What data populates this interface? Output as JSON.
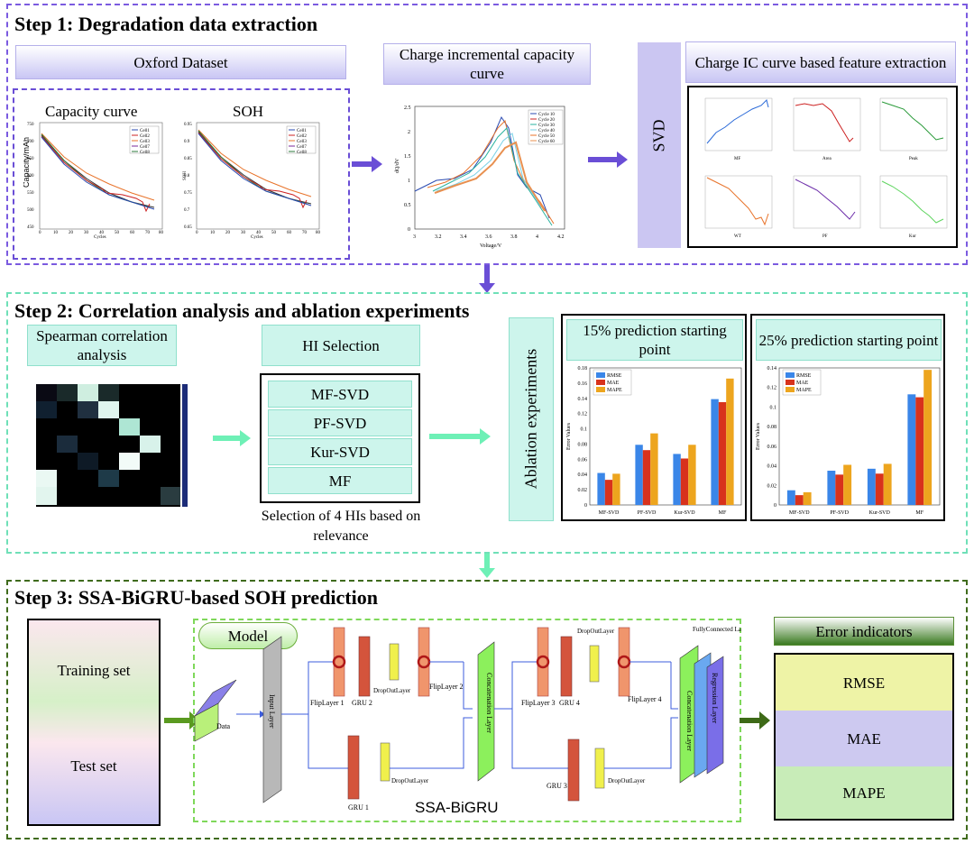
{
  "step1": {
    "title": "Step 1: Degradation data extraction",
    "oxford_dataset": "Oxford Dataset",
    "capacity_curve": "Capacity curve",
    "soh": "SOH",
    "charge_ic_curve": "Charge incremental capacity curve",
    "svd": "SVD",
    "feature_extraction": "Charge IC curve based feature extraction",
    "capacity_plot": {
      "xlabel": "Cycles",
      "ylabel": "Capacity/mAh",
      "yticks": [
        "750",
        "700",
        "650",
        "600",
        "550",
        "500",
        "450"
      ],
      "xticks": [
        "0",
        "10",
        "20",
        "30",
        "40",
        "50",
        "60",
        "70",
        "80"
      ],
      "legend": [
        "Cell1",
        "Cell2",
        "Cell3",
        "Cell7",
        "Cell8"
      ]
    },
    "soh_plot": {
      "xlabel": "Cycles",
      "ylabel": "SOH",
      "yticks": [
        "0.95",
        "0.9",
        "0.85",
        "0.8",
        "0.75",
        "0.7",
        "0.65"
      ],
      "xticks": [
        "0",
        "10",
        "20",
        "30",
        "40",
        "50",
        "60",
        "70",
        "80"
      ],
      "legend": [
        "Cell1",
        "Cell2",
        "Cell3",
        "Cell7",
        "Cell8"
      ]
    },
    "ic_plot": {
      "xlabel": "Voltage/V",
      "ylabel": "dQ/dV",
      "yticks": [
        "2.5",
        "2",
        "1.5",
        "1",
        "0.5",
        "0"
      ],
      "xticks": [
        "3",
        "3.2",
        "3.4",
        "3.6",
        "3.8",
        "4",
        "4.2"
      ],
      "legend": [
        "Cycle 10",
        "Cycle 20",
        "Cycle 30",
        "Cycle 40",
        "Cycle 50",
        "Cycle 60"
      ]
    },
    "feature_labels": [
      "MF",
      "Area",
      "Peak",
      "WT",
      "PF",
      "Kur"
    ]
  },
  "step2": {
    "title": "Step 2: Correlation analysis and ablation experiments",
    "spearman": "Spearman correlation analysis",
    "hi_selection": "HI Selection",
    "his": [
      "MF-SVD",
      "PF-SVD",
      "Kur-SVD",
      "MF"
    ],
    "selection_note": "Selection of 4 HIs based on relevance",
    "ablation": "Ablation experiments",
    "chart_data": [
      {
        "type": "bar",
        "title": "15% prediction starting point",
        "ylabel": "Error Values",
        "categories": [
          "MF-SVD",
          "PF-SVD",
          "Kur-SVD",
          "MF"
        ],
        "ylim": [
          0,
          0.18
        ],
        "yticks": [
          "0",
          "0.02",
          "0.04",
          "0.06",
          "0.08",
          "0.1",
          "0.12",
          "0.14",
          "0.16",
          "0.18"
        ],
        "series": [
          {
            "name": "RMSE",
            "values": [
              0.042,
              0.079,
              0.067,
              0.139
            ]
          },
          {
            "name": "MAE",
            "values": [
              0.033,
              0.072,
              0.061,
              0.135
            ]
          },
          {
            "name": "MAPE",
            "values": [
              0.041,
              0.094,
              0.079,
              0.166
            ]
          }
        ]
      },
      {
        "type": "bar",
        "title": "25% prediction starting point",
        "ylabel": "Error Values",
        "categories": [
          "MF-SVD",
          "PF-SVD",
          "Kur-SVD",
          "MF"
        ],
        "ylim": [
          0,
          0.14
        ],
        "yticks": [
          "0",
          "0.02",
          "0.04",
          "0.06",
          "0.08",
          "0.1",
          "0.12",
          "0.14"
        ],
        "series": [
          {
            "name": "RMSE",
            "values": [
              0.015,
              0.035,
              0.037,
              0.113
            ]
          },
          {
            "name": "MAE",
            "values": [
              0.01,
              0.031,
              0.032,
              0.11
            ]
          },
          {
            "name": "MAPE",
            "values": [
              0.013,
              0.041,
              0.042,
              0.138
            ]
          }
        ]
      }
    ],
    "colors": {
      "rmse": "#3a86e8",
      "mae": "#d8321c",
      "mape": "#eda51e"
    }
  },
  "step3": {
    "title": "Step 3: SSA-BiGRU-based SOH prediction",
    "training_set": "Training set",
    "test_set": "Test set",
    "model": "Model",
    "data": "Data",
    "input_layer": "Input Layer",
    "flip1": "FlipLayer 1",
    "gru2": "GRU 2",
    "dropout1": "DropOutLayer",
    "flip2": "FlipLayer 2",
    "gru1": "GRU 1",
    "dropout2": "DropOutLayer",
    "concat1": "Concatenation Layer",
    "flip3": "FlipLayer 3",
    "gru4": "GRU 4",
    "dropout3": "DropOutLayer",
    "flip4": "FlipLayer 4",
    "gru3": "GRU 3",
    "dropout4": "DropOutLayer",
    "fc": "FullyConnected Layer",
    "concat2": "Concatenation Layer",
    "regression": "Regression Layer",
    "model_name": "SSA-BiGRU",
    "error_indicators": "Error indicators",
    "metrics": [
      "RMSE",
      "MAE",
      "MAPE"
    ]
  }
}
